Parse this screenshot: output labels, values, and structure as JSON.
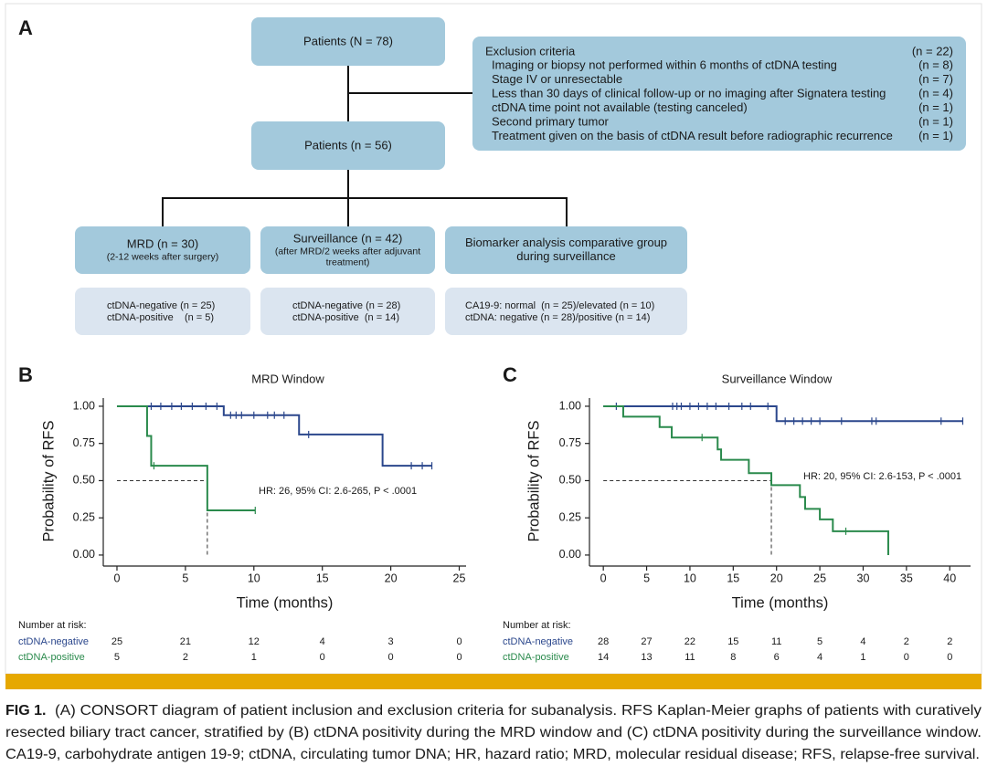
{
  "panel_labels": [
    "A",
    "B",
    "C"
  ],
  "diagram": {
    "total": "Patients (N = 78)",
    "included": "Patients (n = 56)",
    "exclusion": {
      "title": "Exclusion criteria",
      "count": "(n = 22)",
      "items": [
        {
          "text": "Imaging or biopsy not performed within 6 months of ctDNA testing",
          "count": "(n = 8)"
        },
        {
          "text": "Stage IV or unresectable",
          "count": "(n = 7)"
        },
        {
          "text": "Less than 30 days of clinical follow-up or no imaging after Signatera testing",
          "count": "(n = 4)"
        },
        {
          "text": "ctDNA time point not available (testing canceled)",
          "count": "(n = 1)"
        },
        {
          "text": "Second primary tumor",
          "count": "(n = 1)"
        },
        {
          "text": "Treatment given on the basis of ctDNA result before radiographic recurrence",
          "count": "(n = 1)"
        }
      ]
    },
    "groups": [
      {
        "title": [
          "MRD (n = 30)"
        ],
        "subtitle": [
          "(2-12 weeks after surgery)"
        ],
        "details": [
          "ctDNA-negative (n = 25)",
          "ctDNA-positive    (n = 5)"
        ]
      },
      {
        "title": [
          "Surveillance (n = 42)"
        ],
        "subtitle": [
          "(after MRD/2 weeks after adjuvant",
          "treatment)"
        ],
        "details": [
          "ctDNA-negative (n = 28)",
          "ctDNA-positive  (n = 14)"
        ]
      },
      {
        "title": [
          "Biomarker analysis comparative group",
          "during surveillance"
        ],
        "details": [
          "CA19-9: normal  (n = 25)/elevated (n = 10)",
          "ctDNA: negative (n = 28)/positive (n = 14)"
        ]
      }
    ]
  },
  "chart_data": [
    {
      "type": "km",
      "title": "MRD Window",
      "x_label": "Time (months)",
      "y_label": "Probability of RFS",
      "xlim": [
        -1,
        25.5
      ],
      "ylim": [
        -0.074,
        1.055
      ],
      "xticks": [
        0,
        5,
        10,
        15,
        20,
        25
      ],
      "yticks": [
        {
          "value": 0,
          "label": "0.00"
        },
        {
          "value": 0.25,
          "label": "0.25"
        },
        {
          "value": 0.5,
          "label": "0.50"
        },
        {
          "value": 0.75,
          "label": "0.75"
        },
        {
          "value": 1,
          "label": "1.00"
        }
      ],
      "annotation": "HR: 26, 95% CI: 2.6-265, P < .0001",
      "reference": {
        "x": 6.6,
        "y": 0.5
      },
      "risk_title": "Number at risk:",
      "series": [
        {
          "name": "ctDNA-negative",
          "color": "#2b478c",
          "x": [
            0,
            7.8,
            13.3,
            19.4,
            23
          ],
          "values": [
            1,
            0.94,
            0.81,
            0.6,
            0.6
          ],
          "censor_x": [
            2.5,
            3.2,
            4,
            4.7,
            5.5,
            6.5,
            7.3,
            8.3,
            8.7,
            9.1,
            10,
            11,
            11.5,
            12.2,
            14,
            21.5,
            22.3,
            23
          ],
          "censor_values": [
            1,
            1,
            1,
            1,
            1,
            1,
            1,
            0.94,
            0.94,
            0.94,
            0.94,
            0.94,
            0.94,
            0.94,
            0.81,
            0.6,
            0.6,
            0.6
          ],
          "at_risk": [
            25,
            21,
            12,
            4,
            3,
            0
          ]
        },
        {
          "name": "ctDNA-positive",
          "color": "#2a8a4c",
          "x": [
            0,
            2.2,
            2.5,
            6.6,
            10.1
          ],
          "values": [
            1,
            0.8,
            0.6,
            0.3,
            0.3
          ],
          "censor_x": [
            2.7,
            10.1
          ],
          "censor_values": [
            0.6,
            0.3
          ],
          "at_risk": [
            5,
            2,
            1,
            0,
            0,
            0
          ]
        }
      ]
    },
    {
      "type": "km",
      "title": "Surveillance Window",
      "x_label": "Time (months)",
      "y_label": "Probability of RFS",
      "xlim": [
        -1.6,
        42.4
      ],
      "ylim": [
        -0.074,
        1.055
      ],
      "xticks": [
        0,
        5,
        10,
        15,
        20,
        25,
        30,
        35,
        40
      ],
      "yticks": [
        {
          "value": 0,
          "label": "0.00"
        },
        {
          "value": 0.25,
          "label": "0.25"
        },
        {
          "value": 0.5,
          "label": "0.50"
        },
        {
          "value": 0.75,
          "label": "0.75"
        },
        {
          "value": 1,
          "label": "1.00"
        }
      ],
      "annotation": "HR: 20, 95% CI: 2.6-153, P < .0001",
      "reference": {
        "x": 19.4,
        "y": 0.5
      },
      "risk_title": "Number at risk:",
      "series": [
        {
          "name": "ctDNA-negative",
          "color": "#2b478c",
          "x": [
            0,
            20,
            41.5
          ],
          "values": [
            1,
            0.9,
            0.9
          ],
          "censor_x": [
            1.5,
            8,
            8.5,
            9,
            10,
            11,
            12,
            13,
            14.5,
            16,
            17,
            19,
            21,
            22,
            23,
            24,
            25,
            27.5,
            31,
            31.5,
            39,
            41.5
          ],
          "censor_values": [
            1,
            1,
            1,
            1,
            1,
            1,
            1,
            1,
            1,
            1,
            1,
            1,
            0.9,
            0.9,
            0.9,
            0.9,
            0.9,
            0.9,
            0.9,
            0.9,
            0.9,
            0.9
          ],
          "at_risk": [
            28,
            27,
            22,
            15,
            11,
            5,
            4,
            2,
            2
          ]
        },
        {
          "name": "ctDNA-positive",
          "color": "#2a8a4c",
          "x": [
            0,
            2.3,
            6.5,
            7.9,
            13.2,
            13.6,
            16.8,
            19.4,
            22.7,
            23.3,
            25,
            26.5,
            32.9
          ],
          "values": [
            1,
            0.93,
            0.86,
            0.79,
            0.71,
            0.64,
            0.55,
            0.47,
            0.39,
            0.31,
            0.24,
            0.16,
            0
          ],
          "censor_x": [
            11.4,
            28
          ],
          "censor_values": [
            0.79,
            0.16
          ],
          "at_risk": [
            14,
            13,
            11,
            8,
            6,
            4,
            1,
            0,
            0
          ]
        }
      ]
    }
  ],
  "caption": {
    "label": "FIG 1.",
    "lines": [
      "(A) CONSORT diagram of patient inclusion and exclusion criteria for subanalysis. RFS Kaplan-Meier graphs of patients with curatively",
      "resected biliary tract cancer, stratified by (B) ctDNA positivity during the MRD window and (C) ctDNA positivity during the surveillance window.",
      "CA19-9, carbohydrate antigen 19-9; ctDNA, circulating tumor DNA; HR, hazard ratio; MRD, molecular residual disease; RFS, relapse-free survival."
    ]
  }
}
